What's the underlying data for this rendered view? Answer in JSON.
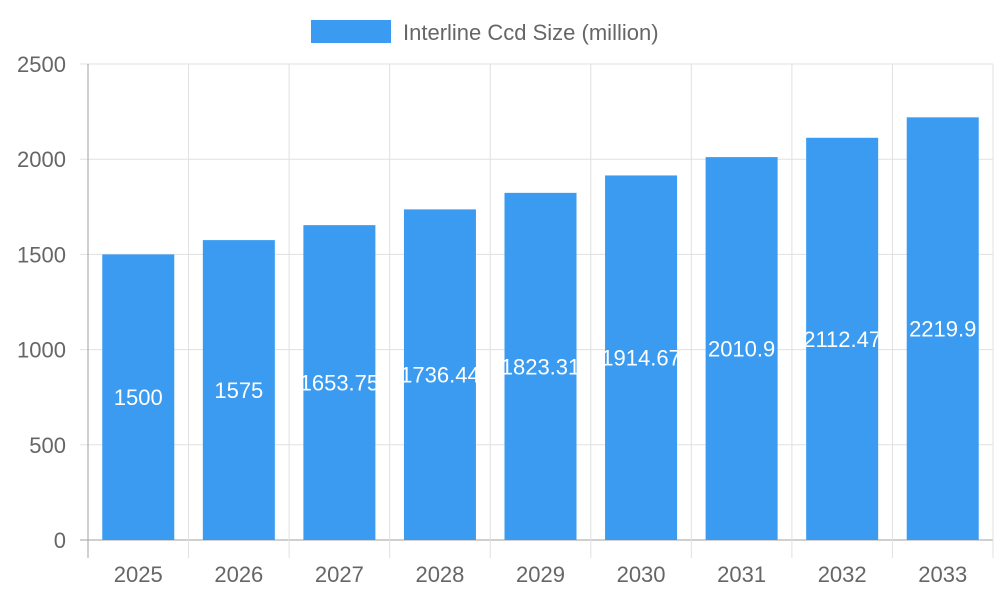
{
  "chart_data": {
    "type": "bar",
    "categories": [
      "2025",
      "2026",
      "2027",
      "2028",
      "2029",
      "2030",
      "2031",
      "2032",
      "2033"
    ],
    "series": [
      {
        "name": "Interline Ccd Size (million)",
        "values": [
          1500,
          1575,
          1653.75,
          1736.44,
          1823.31,
          1914.67,
          2010.9,
          2112.47,
          2219.9
        ]
      }
    ],
    "data_labels": [
      "1500",
      "1575",
      "1653.75",
      "1736.44",
      "1823.31",
      "1914.67",
      "2010.9",
      "2112.47",
      "2219.9"
    ],
    "ylim": [
      0,
      2500
    ],
    "yticks": [
      "0",
      "500",
      "1000",
      "1500",
      "2000",
      "2500"
    ],
    "grid": true,
    "legend": "top",
    "colors": {
      "bar": "#3a9bf0",
      "grid": "#e0e0e0",
      "axis": "#a0a0a0",
      "text": "#666666"
    }
  }
}
